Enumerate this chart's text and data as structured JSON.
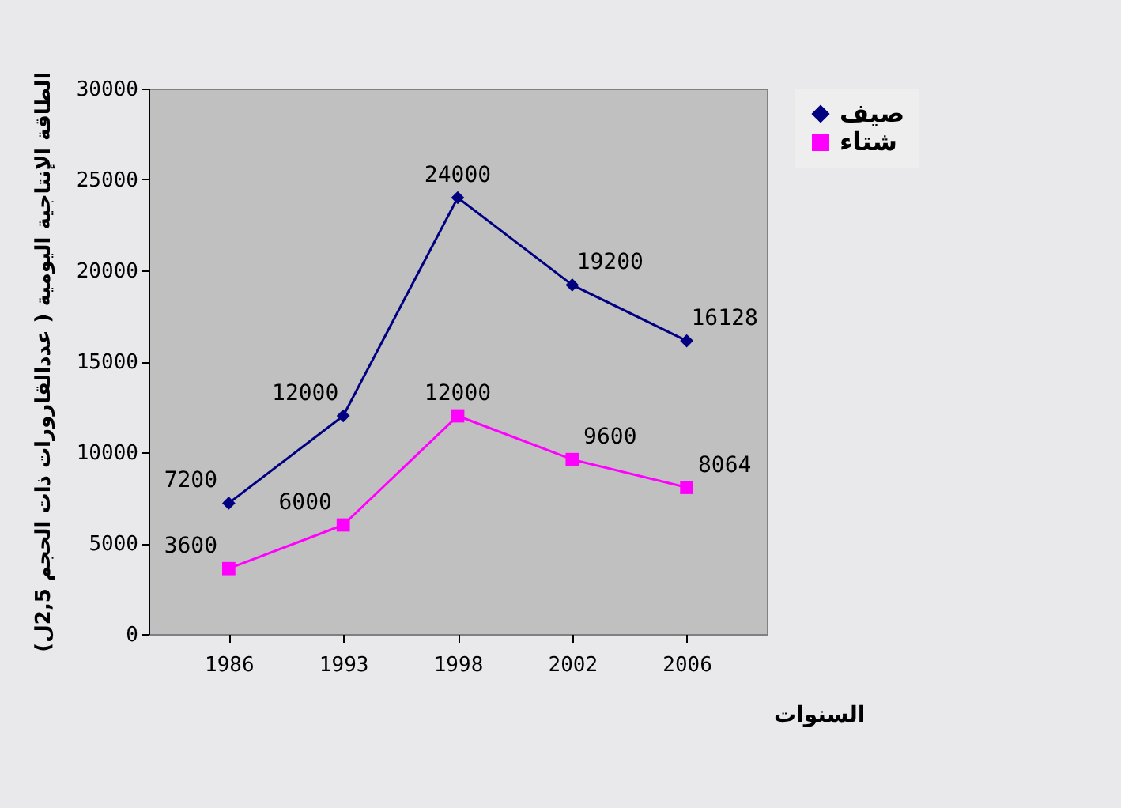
{
  "chart_data": {
    "type": "line",
    "xlabel": "السنوات",
    "ylabel": "الطاقة الإنتاجية اليومية ( عددالقارورات ذات الحجم 2,5ل)",
    "categories": [
      "1986",
      "1993",
      "1998",
      "2002",
      "2006"
    ],
    "series": [
      {
        "name": "صيف",
        "color": "#000080",
        "marker": "diamond",
        "values": [
          7200,
          12000,
          24000,
          19200,
          16128
        ]
      },
      {
        "name": "شتاء",
        "color": "#ff00ff",
        "marker": "square",
        "values": [
          3600,
          6000,
          12000,
          9600,
          8064
        ]
      }
    ],
    "ylim": [
      0,
      30000
    ],
    "yticks": [
      0,
      5000,
      10000,
      15000,
      20000,
      25000,
      30000
    ],
    "data_labels": true,
    "legend": "right",
    "grid": false
  }
}
